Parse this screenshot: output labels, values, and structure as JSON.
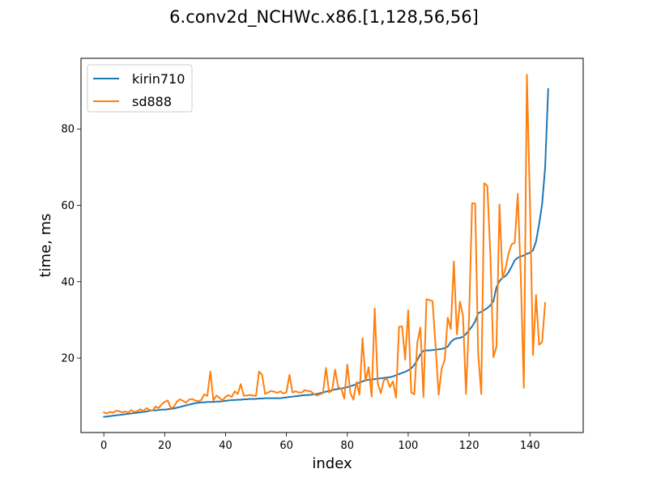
{
  "chart_data": {
    "type": "line",
    "title": "6.conv2d_NCHWc.x86.[1,128,56,56]",
    "xlabel": "index",
    "ylabel": "time, ms",
    "xlim": [
      -7.5,
      157.5
    ],
    "ylim": [
      0.5,
      98.5
    ],
    "xticks": [
      0,
      20,
      40,
      60,
      80,
      100,
      120,
      140
    ],
    "yticks": [
      20,
      40,
      60,
      80
    ],
    "grid": false,
    "legend_position": "top-left",
    "series": [
      {
        "name": "kirin710",
        "color": "#1f77b4",
        "x_start": 0,
        "values": [
          4.6,
          4.7,
          4.8,
          4.9,
          5.0,
          5.1,
          5.2,
          5.3,
          5.4,
          5.5,
          5.6,
          5.7,
          5.8,
          5.9,
          6.0,
          6.2,
          6.3,
          6.3,
          6.4,
          6.5,
          6.5,
          6.6,
          6.7,
          6.8,
          7.0,
          7.2,
          7.4,
          7.6,
          7.8,
          8.0,
          8.2,
          8.3,
          8.4,
          8.4,
          8.5,
          8.5,
          8.5,
          8.6,
          8.6,
          8.7,
          8.8,
          8.9,
          9.0,
          9.0,
          9.1,
          9.1,
          9.2,
          9.2,
          9.3,
          9.3,
          9.3,
          9.4,
          9.4,
          9.5,
          9.5,
          9.5,
          9.5,
          9.5,
          9.5,
          9.6,
          9.7,
          9.8,
          9.9,
          10.0,
          10.1,
          10.2,
          10.3,
          10.3,
          10.4,
          10.5,
          10.6,
          10.8,
          11.0,
          11.2,
          11.4,
          11.6,
          11.8,
          11.9,
          12.0,
          12.2,
          12.4,
          12.6,
          12.9,
          13.2,
          13.6,
          13.9,
          14.2,
          14.3,
          14.4,
          14.5,
          14.6,
          14.7,
          14.8,
          14.9,
          15.0,
          15.2,
          15.5,
          15.8,
          16.1,
          16.4,
          16.8,
          17.3,
          18.2,
          19.5,
          21.0,
          21.9,
          22.0,
          22.0,
          22.1,
          22.2,
          22.3,
          22.4,
          22.6,
          23.0,
          24.2,
          24.9,
          25.2,
          25.3,
          25.6,
          26.3,
          27.3,
          28.3,
          29.6,
          31.8,
          32.1,
          32.6,
          33.1,
          33.8,
          34.9,
          38.5,
          40.2,
          41.0,
          41.5,
          42.5,
          44.0,
          45.6,
          46.3,
          46.6,
          46.9,
          47.3,
          47.6,
          48.2,
          50.5,
          55.0,
          60.3,
          70.0,
          90.5
        ]
      },
      {
        "name": "sd888",
        "color": "#ff7f0e",
        "x_start": 0,
        "values": [
          5.8,
          5.5,
          5.9,
          5.7,
          6.2,
          6.1,
          5.8,
          6.0,
          5.7,
          6.4,
          5.9,
          6.1,
          6.6,
          6.1,
          6.9,
          6.4,
          6.3,
          7.3,
          6.9,
          7.9,
          8.5,
          8.9,
          6.9,
          7.2,
          8.6,
          9.2,
          8.8,
          8.3,
          9.1,
          9.3,
          8.9,
          8.7,
          9.0,
          10.5,
          10.1,
          16.5,
          8.9,
          10.2,
          9.6,
          8.9,
          9.9,
          10.3,
          9.8,
          11.3,
          10.6,
          13.2,
          10.1,
          10.2,
          10.3,
          10.2,
          10.1,
          16.5,
          15.6,
          10.6,
          11.0,
          11.4,
          11.2,
          10.9,
          11.3,
          10.7,
          11.1,
          15.6,
          11.0,
          11.3,
          11.0,
          11.0,
          11.6,
          11.4,
          11.3,
          10.6,
          10.2,
          10.5,
          10.8,
          17.4,
          11.0,
          11.5,
          17.0,
          12.3,
          12.1,
          9.4,
          18.3,
          10.8,
          9.1,
          13.7,
          10.4,
          25.2,
          14.0,
          17.6,
          9.9,
          33.0,
          13.4,
          10.8,
          14.2,
          14.6,
          12.4,
          13.9,
          9.6,
          28.2,
          28.3,
          19.6,
          32.5,
          11.0,
          10.5,
          24.1,
          28.0,
          9.8,
          35.4,
          35.2,
          34.9,
          23.1,
          10.4,
          17.2,
          19.5,
          30.6,
          27.6,
          45.3,
          26.2,
          34.8,
          31.1,
          10.6,
          30.6,
          60.5,
          60.5,
          21.2,
          10.6,
          65.8,
          65.1,
          47.0,
          20.2,
          23.0,
          60.2,
          41.0,
          43.5,
          47.5,
          49.8,
          50.2,
          63.0,
          41.0,
          12.2,
          94.2,
          61.0,
          20.8,
          36.5,
          23.5,
          24.2,
          34.5
        ]
      }
    ]
  }
}
